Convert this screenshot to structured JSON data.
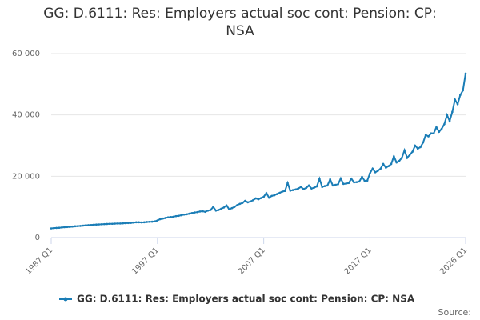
{
  "chart_data": {
    "type": "line",
    "title": "GG: D.6111: Res: Employers actual soc cont: Pension: CP: NSA",
    "source": "Source:",
    "categories": [
      "1987 Q1",
      null,
      null,
      null,
      null,
      null,
      null,
      null,
      null,
      null,
      null,
      null,
      null,
      null,
      null,
      null,
      null,
      null,
      null,
      null,
      null,
      null,
      null,
      null,
      null,
      null,
      null,
      null,
      null,
      null,
      null,
      null,
      null,
      null,
      null,
      null,
      null,
      null,
      null,
      null,
      "1997 Q1",
      null,
      null,
      null,
      null,
      null,
      null,
      null,
      null,
      null,
      null,
      null,
      null,
      null,
      null,
      null,
      null,
      null,
      null,
      null,
      null,
      null,
      null,
      null,
      null,
      null,
      null,
      null,
      null,
      null,
      null,
      null,
      null,
      null,
      null,
      null,
      null,
      null,
      null,
      null,
      "2007 Q1",
      null,
      null,
      null,
      null,
      null,
      null,
      null,
      null,
      null,
      null,
      null,
      null,
      null,
      null,
      null,
      null,
      null,
      null,
      null,
      null,
      null,
      null,
      null,
      null,
      null,
      null,
      null,
      null,
      null,
      null,
      null,
      null,
      null,
      null,
      null,
      null,
      null,
      null,
      null,
      "2017 Q1",
      null,
      null,
      null,
      null,
      null,
      null,
      null,
      null,
      null,
      null,
      null,
      null,
      null,
      null,
      null,
      null,
      null,
      null,
      null,
      null,
      null,
      null,
      null,
      null,
      null,
      null,
      null,
      null,
      null,
      null,
      null,
      null,
      null,
      null,
      null,
      "2026 Q1"
    ],
    "series": [
      {
        "name": "GG: D.6111: Res: Employers actual soc cont: Pension: CP: NSA",
        "color": "#1a7db6",
        "values": [
          3000,
          3100,
          3150,
          3200,
          3300,
          3400,
          3450,
          3500,
          3600,
          3700,
          3750,
          3800,
          3900,
          4000,
          4050,
          4100,
          4200,
          4250,
          4300,
          4350,
          4400,
          4450,
          4500,
          4500,
          4550,
          4600,
          4600,
          4650,
          4700,
          4750,
          4800,
          4900,
          5000,
          5000,
          4950,
          5000,
          5100,
          5150,
          5200,
          5300,
          5600,
          6000,
          6200,
          6400,
          6600,
          6700,
          6800,
          7000,
          7100,
          7300,
          7500,
          7600,
          7800,
          8000,
          8200,
          8300,
          8500,
          8600,
          8400,
          8800,
          9000,
          10000,
          8800,
          9000,
          9400,
          9800,
          10500,
          9200,
          9600,
          10000,
          10600,
          11000,
          11300,
          12000,
          11500,
          11800,
          12200,
          12800,
          12500,
          12900,
          13300,
          14500,
          13000,
          13600,
          13800,
          14200,
          14600,
          15000,
          15200,
          17800,
          15300,
          15500,
          15700,
          16000,
          16500,
          15800,
          16200,
          17000,
          16000,
          16300,
          16700,
          19200,
          16500,
          16800,
          17000,
          19000,
          17000,
          17200,
          17400,
          19300,
          17500,
          17600,
          17800,
          19200,
          18000,
          18100,
          18300,
          19800,
          18500,
          18600,
          21000,
          22500,
          21300,
          21800,
          22500,
          24000,
          22800,
          23300,
          24000,
          26500,
          24500,
          25000,
          26000,
          28500,
          26000,
          27000,
          28000,
          30000,
          29000,
          29500,
          31000,
          33500,
          33000,
          34000,
          34000,
          36000,
          34500,
          35500,
          37000,
          40000,
          38000,
          41000,
          45000,
          43500,
          46500,
          48000,
          53500
        ]
      }
    ],
    "ylim": [
      0,
      60000
    ],
    "yticks": [
      0,
      {
        "value": 20000,
        "label": "20 000"
      },
      {
        "value": 40000,
        "label": "40 000"
      },
      {
        "value": 60000,
        "label": "60 000"
      }
    ],
    "grid": true
  }
}
